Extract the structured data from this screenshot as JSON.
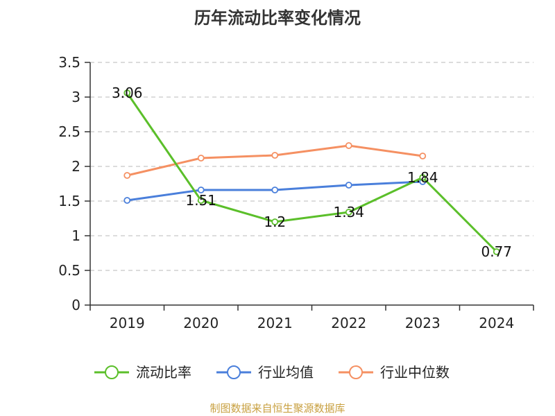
{
  "chart_data": {
    "type": "line",
    "title": "历年流动比率变化情况",
    "categories": [
      "2019",
      "2020",
      "2021",
      "2022",
      "2023",
      "2024"
    ],
    "ylim": [
      0,
      3.5
    ],
    "yticks": [
      "0",
      "0.5",
      "1",
      "1.5",
      "2",
      "2.5",
      "3",
      "3.5"
    ],
    "grid": true,
    "legend_position": "bottom",
    "series": [
      {
        "name": "流动比率",
        "color": "#5bbf2a",
        "values": [
          3.06,
          1.51,
          1.2,
          1.34,
          1.84,
          0.77
        ],
        "labels": [
          "3.06",
          "1.51",
          "1.2",
          "1.34",
          "1.84",
          "0.77"
        ]
      },
      {
        "name": "行业均值",
        "color": "#4a7fdb",
        "values": [
          1.51,
          1.66,
          1.66,
          1.73,
          1.78,
          null
        ]
      },
      {
        "name": "行业中位数",
        "color": "#f59062",
        "values": [
          1.87,
          2.12,
          2.16,
          2.3,
          2.15,
          null
        ]
      }
    ]
  },
  "footer": "制图数据来自恒生聚源数据库"
}
